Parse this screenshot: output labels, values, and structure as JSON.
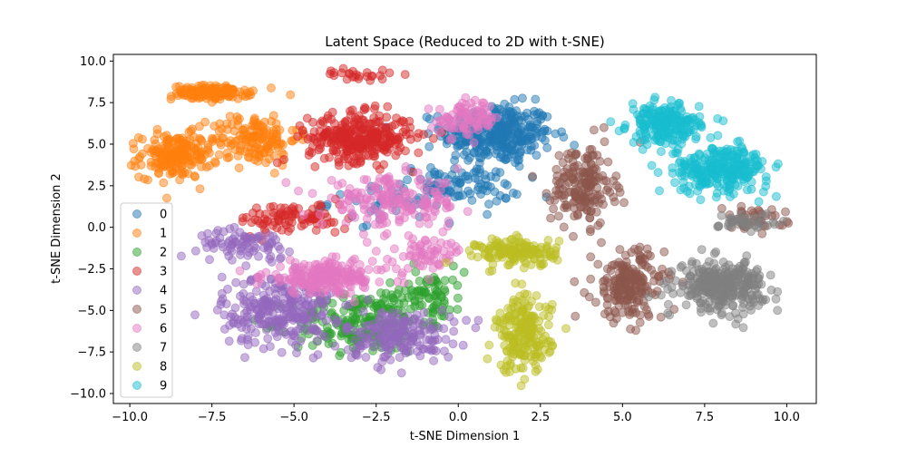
{
  "chart_data": {
    "type": "scatter",
    "title": "Latent Space (Reduced to 2D with t-SNE)",
    "xlabel": "t-SNE Dimension 1",
    "ylabel": "t-SNE Dimension 2",
    "xlim": [
      -10.5,
      10.9
    ],
    "ylim": [
      -10.6,
      10.4
    ],
    "xticks": [
      -10.0,
      -7.5,
      -5.0,
      -2.5,
      0.0,
      2.5,
      5.0,
      7.5,
      10.0
    ],
    "xtick_labels": [
      "−10.0",
      "−7.5",
      "−5.0",
      "−2.5",
      "0.0",
      "2.5",
      "5.0",
      "7.5",
      "10.0"
    ],
    "yticks": [
      -10.0,
      -7.5,
      -5.0,
      -2.5,
      0.0,
      2.5,
      5.0,
      7.5,
      10.0
    ],
    "ytick_labels": [
      "−10.0",
      "−7.5",
      "−5.0",
      "−2.5",
      "0.0",
      "2.5",
      "5.0",
      "7.5",
      "10.0"
    ],
    "grid": false,
    "legend_position": "lower-left",
    "marker_alpha": 0.5,
    "series": [
      {
        "name": "0",
        "color": "#1f77b4",
        "clusters": [
          {
            "cx": 1.2,
            "cy": 5.6,
            "sx": 1.4,
            "sy": 1.5,
            "n": 320
          },
          {
            "cx": 0.0,
            "cy": 2.5,
            "sx": 1.6,
            "sy": 1.0,
            "n": 90
          },
          {
            "cx": -2.0,
            "cy": 1.5,
            "sx": 1.6,
            "sy": 1.0,
            "n": 40
          }
        ]
      },
      {
        "name": "1",
        "color": "#ff7f0e",
        "clusters": [
          {
            "cx": -7.5,
            "cy": 8.1,
            "sx": 1.0,
            "sy": 0.35,
            "n": 140
          },
          {
            "cx": -8.6,
            "cy": 4.3,
            "sx": 0.9,
            "sy": 1.1,
            "n": 200
          },
          {
            "cx": -6.2,
            "cy": 5.3,
            "sx": 1.1,
            "sy": 1.3,
            "n": 150
          }
        ]
      },
      {
        "name": "2",
        "color": "#2ca02c",
        "clusters": [
          {
            "cx": -3.0,
            "cy": -5.8,
            "sx": 1.7,
            "sy": 1.5,
            "n": 200
          },
          {
            "cx": -1.0,
            "cy": -4.0,
            "sx": 1.0,
            "sy": 1.4,
            "n": 90
          }
        ]
      },
      {
        "name": "3",
        "color": "#d62728",
        "clusters": [
          {
            "cx": -3.0,
            "cy": 5.4,
            "sx": 1.3,
            "sy": 1.2,
            "n": 320
          },
          {
            "cx": -5.0,
            "cy": 0.5,
            "sx": 1.4,
            "sy": 0.8,
            "n": 90
          },
          {
            "cx": -3.0,
            "cy": 9.2,
            "sx": 0.9,
            "sy": 0.25,
            "n": 25
          }
        ]
      },
      {
        "name": "4",
        "color": "#9467bd",
        "clusters": [
          {
            "cx": -5.5,
            "cy": -5.0,
            "sx": 1.4,
            "sy": 1.8,
            "n": 260
          },
          {
            "cx": -1.8,
            "cy": -6.5,
            "sx": 1.4,
            "sy": 1.3,
            "n": 180
          },
          {
            "cx": -6.5,
            "cy": -1.0,
            "sx": 1.2,
            "sy": 0.7,
            "n": 80
          }
        ]
      },
      {
        "name": "5",
        "color": "#8c564b",
        "clusters": [
          {
            "cx": 3.8,
            "cy": 2.5,
            "sx": 0.8,
            "sy": 2.0,
            "n": 180
          },
          {
            "cx": 5.2,
            "cy": -3.5,
            "sx": 0.9,
            "sy": 1.8,
            "n": 200
          },
          {
            "cx": 9.0,
            "cy": 0.5,
            "sx": 0.8,
            "sy": 0.6,
            "n": 40
          }
        ]
      },
      {
        "name": "6",
        "color": "#e377c2",
        "clusters": [
          {
            "cx": -4.0,
            "cy": -3.0,
            "sx": 1.6,
            "sy": 0.8,
            "n": 220
          },
          {
            "cx": -2.0,
            "cy": 1.5,
            "sx": 1.8,
            "sy": 1.2,
            "n": 180
          },
          {
            "cx": 0.3,
            "cy": 6.5,
            "sx": 0.8,
            "sy": 0.9,
            "n": 90
          },
          {
            "cx": -1.0,
            "cy": -1.5,
            "sx": 1.0,
            "sy": 0.8,
            "n": 60
          }
        ]
      },
      {
        "name": "7",
        "color": "#7f7f7f",
        "clusters": [
          {
            "cx": 8.0,
            "cy": -3.5,
            "sx": 1.1,
            "sy": 1.2,
            "n": 320
          },
          {
            "cx": 8.8,
            "cy": 0.3,
            "sx": 0.7,
            "sy": 0.5,
            "n": 40
          }
        ]
      },
      {
        "name": "8",
        "color": "#bcbd22",
        "clusters": [
          {
            "cx": 1.8,
            "cy": -1.5,
            "sx": 1.0,
            "sy": 0.7,
            "n": 150
          },
          {
            "cx": 2.0,
            "cy": -6.5,
            "sx": 0.7,
            "sy": 1.9,
            "n": 200
          }
        ]
      },
      {
        "name": "9",
        "color": "#17becf",
        "clusters": [
          {
            "cx": 6.3,
            "cy": 6.2,
            "sx": 0.9,
            "sy": 1.0,
            "n": 220
          },
          {
            "cx": 8.0,
            "cy": 3.5,
            "sx": 1.2,
            "sy": 1.1,
            "n": 280
          }
        ]
      }
    ]
  }
}
